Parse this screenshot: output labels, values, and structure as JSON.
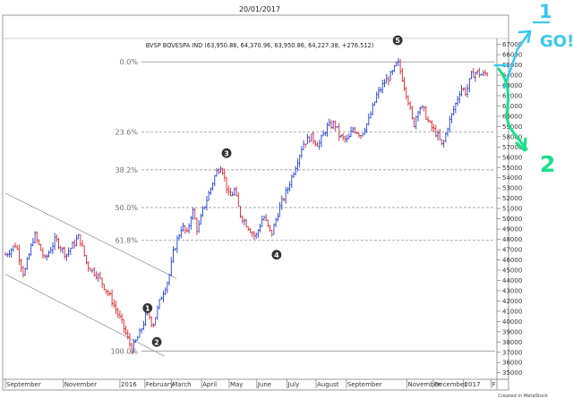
{
  "header": {
    "date": "20/01/2017",
    "instrument_line": "BVSP BOVESPA IND (63,950.86, 64,370.96, 63,950.86, 64,227.38, +276.512)"
  },
  "footer": {
    "credit": "Created in MetaStock"
  },
  "colors": {
    "up_bar": "#1f3fd6",
    "down_bar": "#e0202a",
    "gridline": "#8a8a8a",
    "channel": "#8a8a8a",
    "annotation": "#18e08a",
    "annotation_text": "#37c8f0",
    "marker_fill": "#333333"
  },
  "chart_data": {
    "type": "ohlc",
    "title": "BVSP BOVESPA IND (63,950.86, 64,370.96, 63,950.86, 64,227.38, +276.512)",
    "ylim": [
      34800,
      67400
    ],
    "y_ticks": [
      35000,
      36000,
      37000,
      38000,
      39000,
      40000,
      41000,
      42000,
      43000,
      44000,
      45000,
      46000,
      47000,
      48000,
      49000,
      50000,
      51000,
      52000,
      53000,
      54000,
      55000,
      56000,
      57000,
      58000,
      59000,
      60000,
      61000,
      62000,
      63000,
      64000,
      65000,
      66000,
      67000
    ],
    "x_labels": [
      {
        "label": "September",
        "t": 0
      },
      {
        "label": "November",
        "t": 44
      },
      {
        "label": "2016",
        "t": 87
      },
      {
        "label": "February",
        "t": 106
      },
      {
        "label": "March",
        "t": 126
      },
      {
        "label": "April",
        "t": 149
      },
      {
        "label": "May",
        "t": 170
      },
      {
        "label": "June",
        "t": 191
      },
      {
        "label": "July",
        "t": 214
      },
      {
        "label": "August",
        "t": 236
      },
      {
        "label": "September",
        "t": 259
      },
      {
        "label": "November",
        "t": 305
      },
      {
        "label": "December",
        "t": 325
      },
      {
        "label": "2017",
        "t": 348
      },
      {
        "label": "F",
        "t": 369
      }
    ],
    "t_range": [
      0,
      372
    ],
    "fib_levels": [
      {
        "label": "0.0%",
        "value": 65300
      },
      {
        "label": "23.6%",
        "value": 58450
      },
      {
        "label": "38.2%",
        "value": 54770
      },
      {
        "label": "50.0%",
        "value": 51100
      },
      {
        "label": "61.8%",
        "value": 47900
      },
      {
        "label": "100.0%",
        "value": 37100
      }
    ],
    "price_path": [
      [
        0,
        46500
      ],
      [
        8,
        47500
      ],
      [
        14,
        44500
      ],
      [
        22,
        48500
      ],
      [
        30,
        46000
      ],
      [
        38,
        48000
      ],
      [
        46,
        46500
      ],
      [
        56,
        48300
      ],
      [
        62,
        45500
      ],
      [
        70,
        44500
      ],
      [
        80,
        42300
      ],
      [
        88,
        40000
      ],
      [
        96,
        37300
      ],
      [
        102,
        38800
      ],
      [
        108,
        41000
      ],
      [
        112,
        39600
      ],
      [
        118,
        42300
      ],
      [
        124,
        44200
      ],
      [
        128,
        47000
      ],
      [
        134,
        49300
      ],
      [
        138,
        48500
      ],
      [
        142,
        51000
      ],
      [
        146,
        48800
      ],
      [
        150,
        50800
      ],
      [
        156,
        53000
      ],
      [
        160,
        54500
      ],
      [
        164,
        55300
      ],
      [
        166,
        54200
      ],
      [
        170,
        52000
      ],
      [
        174,
        52800
      ],
      [
        178,
        50500
      ],
      [
        184,
        49300
      ],
      [
        190,
        48200
      ],
      [
        196,
        50300
      ],
      [
        202,
        48400
      ],
      [
        208,
        51000
      ],
      [
        214,
        52800
      ],
      [
        220,
        55000
      ],
      [
        226,
        57300
      ],
      [
        232,
        58000
      ],
      [
        238,
        57200
      ],
      [
        244,
        58900
      ],
      [
        250,
        59300
      ],
      [
        254,
        58000
      ],
      [
        260,
        57600
      ],
      [
        264,
        58800
      ],
      [
        270,
        58200
      ],
      [
        276,
        59600
      ],
      [
        282,
        62000
      ],
      [
        288,
        63300
      ],
      [
        294,
        64200
      ],
      [
        298,
        65300
      ],
      [
        302,
        63500
      ],
      [
        306,
        61500
      ],
      [
        310,
        59000
      ],
      [
        314,
        61000
      ],
      [
        318,
        60500
      ],
      [
        322,
        59200
      ],
      [
        328,
        58200
      ],
      [
        332,
        57000
      ],
      [
        336,
        59000
      ],
      [
        342,
        61200
      ],
      [
        346,
        62800
      ],
      [
        350,
        62300
      ],
      [
        354,
        64000
      ],
      [
        358,
        64300
      ],
      [
        362,
        64000
      ],
      [
        366,
        64227
      ]
    ],
    "wave_labels": [
      {
        "label": "1",
        "t": 108,
        "value": 41300
      },
      {
        "label": "2",
        "t": 115,
        "value": 38000
      },
      {
        "label": "3",
        "t": 168,
        "value": 56400
      },
      {
        "label": "4",
        "t": 206,
        "value": 46500
      },
      {
        "label": "5",
        "t": 298,
        "value": 67400
      }
    ],
    "channel": {
      "upper": [
        [
          0,
          52500
        ],
        [
          130,
          44200
        ]
      ],
      "lower": [
        [
          0,
          44600
        ],
        [
          121,
          36600
        ]
      ]
    },
    "annotation": {
      "target_label": "1",
      "go_text": "GO!",
      "wave_label": "2"
    }
  }
}
